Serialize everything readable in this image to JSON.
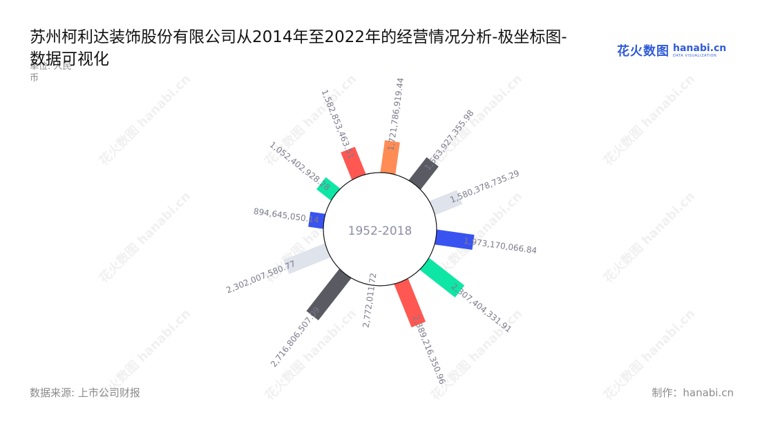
{
  "page": {
    "title": "苏州柯利达装饰股份有限公司从2014年至2022年的经营情况分析-极坐标图-数据可视化",
    "unit": "单位: 人民币",
    "source": "数据来源: 上市公司财报",
    "maker": "制作：hanabi.cn",
    "logo_cn": "花火数图",
    "logo_en": "hanabi.cn",
    "logo_sub": "DATA VISUALIZATION",
    "watermark": "花火数图 hanabi.cn"
  },
  "chart_data": {
    "type": "bar",
    "polar": true,
    "center_label": "1952-2018",
    "categories": [
      "",
      "",
      "",
      "",
      "",
      "",
      "",
      "",
      "",
      "",
      "",
      ""
    ],
    "values": [
      1721786919.44,
      1563927355.98,
      1580378735.29,
      1973170066.84,
      2307404331.91,
      2389216350.96,
      2772011.72,
      2716806507.09,
      2302007580.77,
      894645050.14,
      1052402928.28,
      1582853463.51
    ],
    "value_labels": [
      "1,721,786,919.44",
      "1,563,927,355.98",
      "1,580,378,735.29",
      "1,973,170,066.84",
      "2,307,404,331.91",
      "2,389,216,350.96",
      "2,772,011.72",
      "2,716,806,507.09",
      "2,302,007,580.77",
      "894,645,050.14",
      "1,052,402,928.28",
      "1,582,853,463.51"
    ],
    "colors": [
      "#ff8c55",
      "#595a62",
      "#dfe3ec",
      "#3953f0",
      "#0ee6a5",
      "#ff5752"
    ],
    "bar_color_cycle": [
      0,
      1,
      2,
      3,
      4,
      5,
      0,
      1,
      2,
      3,
      4,
      5
    ],
    "label_color": "#7b7b8c",
    "center_text_color": "#8d8da4",
    "grid": false,
    "legend": "none"
  }
}
